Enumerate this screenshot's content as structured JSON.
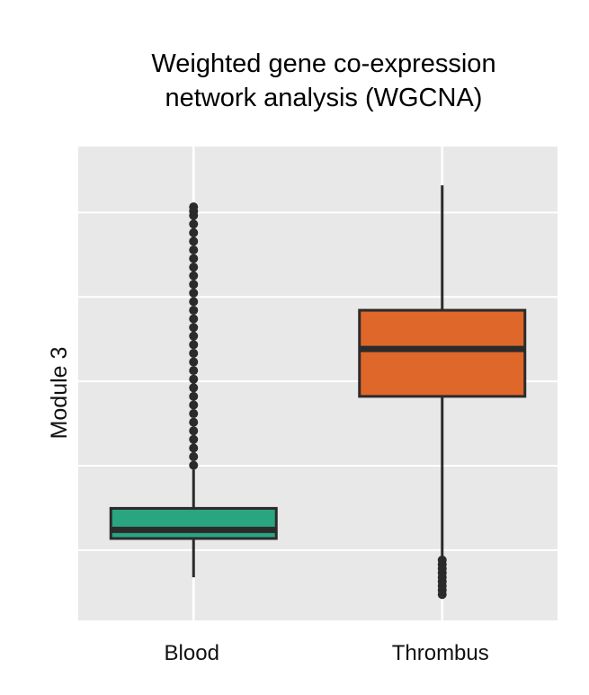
{
  "chart_data": {
    "type": "box",
    "title_lines": [
      "Weighted gene co-expression",
      "network analysis (WGCNA)"
    ],
    "xlabel": "",
    "ylabel": "Module 3",
    "y_tick_labels_shown": false,
    "ylim": [
      0,
      1
    ],
    "grid": true,
    "legend": "none",
    "categories": [
      "Blood",
      "Thrombus"
    ],
    "boxes": [
      {
        "category": "Blood",
        "color": "#29a580",
        "whisker_low": 0.05,
        "q1": 0.14,
        "median": 0.16,
        "q3": 0.21,
        "whisker_high": 0.3,
        "outliers": [
          0.31,
          0.33,
          0.35,
          0.37,
          0.39,
          0.41,
          0.43,
          0.45,
          0.47,
          0.49,
          0.51,
          0.53,
          0.55,
          0.57,
          0.59,
          0.61,
          0.63,
          0.65,
          0.67,
          0.69,
          0.71,
          0.73,
          0.75,
          0.77,
          0.79,
          0.81,
          0.83,
          0.85,
          0.87,
          0.89,
          0.91,
          0.9
        ]
      },
      {
        "category": "Thrombus",
        "color": "#e0672a",
        "whisker_low": 0.1,
        "q1": 0.47,
        "median": 0.58,
        "q3": 0.67,
        "whisker_high": 0.96,
        "outliers": [
          0.01,
          0.02,
          0.03,
          0.04,
          0.05,
          0.06,
          0.07,
          0.08,
          0.09
        ]
      }
    ]
  }
}
